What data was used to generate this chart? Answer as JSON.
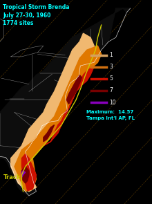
{
  "title_line1": "Tropical Storm Brenda",
  "title_line2": "July 27-30, 1960",
  "title_line3": "1774 sites",
  "title_color": "#00ffff",
  "background_color": "#000000",
  "legend_labels": [
    "1",
    "3",
    "5",
    "7",
    "10"
  ],
  "legend_colors": [
    "#d4a060",
    "#d07010",
    "#cc1100",
    "#770000",
    "#8800bb"
  ],
  "max_text": "Maximum:  14.57\nTampa Int'l AP, FL",
  "max_color": "#00ffff",
  "track_label": "Track",
  "track_color": "#cccc00",
  "figsize": [
    2.2,
    2.95
  ],
  "dpi": 100,
  "dash_color": "#8B5A00",
  "state_color": "#ffffff",
  "coast_color": "#ffffff"
}
